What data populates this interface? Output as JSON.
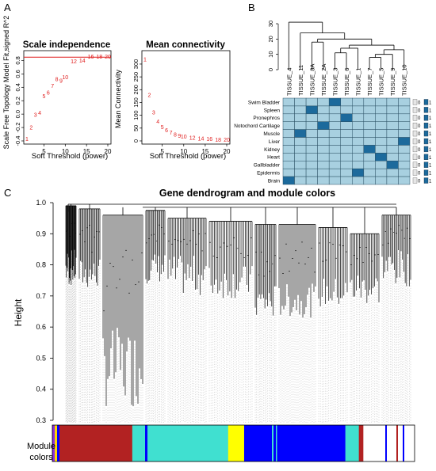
{
  "panel_labels": {
    "a": "A",
    "b": "B",
    "c": "C"
  },
  "chart_data": [
    {
      "type": "scatter",
      "title": "Scale independence",
      "xlabel": "Soft Threshold (power)",
      "ylabel": "Scale Free Topology Model Fit,signed R^2",
      "xlim": [
        1,
        20
      ],
      "ylim": [
        -0.4,
        0.9
      ],
      "xticks": [
        "5",
        "10",
        "15",
        "20"
      ],
      "yticks": [
        "-0.4",
        "-0.2",
        "0.0",
        "0.2",
        "0.4",
        "0.6",
        "0.8"
      ],
      "reference_line": 0.85,
      "reference_color": "#e02020",
      "point_color": "#e02020",
      "points": [
        {
          "label": "1",
          "x": 1,
          "y": -0.37
        },
        {
          "label": "2",
          "x": 2,
          "y": -0.2
        },
        {
          "label": "3",
          "x": 3,
          "y": -0.01
        },
        {
          "label": "4",
          "x": 4,
          "y": 0.02
        },
        {
          "label": "5",
          "x": 5,
          "y": 0.27
        },
        {
          "label": "6",
          "x": 6,
          "y": 0.32
        },
        {
          "label": "7",
          "x": 7,
          "y": 0.42
        },
        {
          "label": "8",
          "x": 8,
          "y": 0.52
        },
        {
          "label": "9",
          "x": 9,
          "y": 0.5
        },
        {
          "label": "10",
          "x": 10,
          "y": 0.55
        },
        {
          "label": "12",
          "x": 12,
          "y": 0.79
        },
        {
          "label": "14",
          "x": 14,
          "y": 0.8
        },
        {
          "label": "16",
          "x": 16,
          "y": 0.86
        },
        {
          "label": "18",
          "x": 18,
          "y": 0.86
        },
        {
          "label": "20",
          "x": 20,
          "y": 0.86
        }
      ]
    },
    {
      "type": "scatter",
      "title": "Mean connectivity",
      "xlabel": "Soft Threshold (power)",
      "ylabel": "Mean Connectivity",
      "xlim": [
        1,
        20
      ],
      "ylim": [
        0,
        340
      ],
      "xticks": [
        "5",
        "10",
        "15",
        "20"
      ],
      "yticks": [
        "0",
        "50",
        "100",
        "150",
        "200",
        "250",
        "300"
      ],
      "point_color": "#e02020",
      "points": [
        {
          "label": "1",
          "x": 1,
          "y": 318
        },
        {
          "label": "2",
          "x": 2,
          "y": 180
        },
        {
          "label": "3",
          "x": 3,
          "y": 112
        },
        {
          "label": "4",
          "x": 4,
          "y": 76
        },
        {
          "label": "5",
          "x": 5,
          "y": 54
        },
        {
          "label": "6",
          "x": 6,
          "y": 41
        },
        {
          "label": "7",
          "x": 7,
          "y": 32
        },
        {
          "label": "8",
          "x": 8,
          "y": 25
        },
        {
          "label": "9",
          "x": 9,
          "y": 20
        },
        {
          "label": "10",
          "x": 10,
          "y": 17
        },
        {
          "label": "12",
          "x": 12,
          "y": 12
        },
        {
          "label": "14",
          "x": 14,
          "y": 9
        },
        {
          "label": "16",
          "x": 16,
          "y": 7
        },
        {
          "label": "18",
          "x": 18,
          "y": 5
        },
        {
          "label": "20",
          "x": 20,
          "y": 4
        }
      ]
    },
    {
      "type": "heatmap",
      "dendrogram_ticks": [
        "0",
        "10",
        "20",
        "30"
      ],
      "columns": [
        "TISSUE_4",
        "TISSUE_11",
        "TISSUE_8A",
        "TISSUE_2A",
        "TISSUE_3",
        "TISSUE_6",
        "TISSUE_1",
        "TISSUE_7",
        "TISSUE_5",
        "TISSUE_9",
        "TISSUE_10"
      ],
      "rows": [
        "Swim Bladder",
        "Spleen",
        "Pronephros",
        "Notochord Cartilage",
        "Muscle",
        "Liver",
        "Kidney",
        "Heart",
        "Gallbladder",
        "Epidermis",
        "Brain"
      ],
      "highlight": [
        [
          0,
          4
        ],
        [
          1,
          2
        ],
        [
          2,
          5
        ],
        [
          3,
          3
        ],
        [
          4,
          1
        ],
        [
          5,
          10
        ],
        [
          6,
          7
        ],
        [
          7,
          8
        ],
        [
          8,
          9
        ],
        [
          9,
          6
        ],
        [
          10,
          0
        ]
      ],
      "colors": {
        "low": "#a8d0e0",
        "high": "#1c6a9c",
        "grid": "#2a4f63"
      },
      "legend_values": [
        "0",
        "1"
      ]
    },
    {
      "type": "dendrogram",
      "title": "Gene dendrogram and module colors",
      "ylabel": "Height",
      "ylim": [
        0.3,
        1.0
      ],
      "yticks": [
        "0.3",
        "0.4",
        "0.5",
        "0.6",
        "0.7",
        "0.8",
        "0.9",
        "1.0"
      ],
      "color_bar_label": "Module colors",
      "modules": [
        {
          "color": "#b22222",
          "share": 0.205
        },
        {
          "color": "#40e0d0",
          "share": 0.27
        },
        {
          "color": "#ffff00",
          "share": 0.045
        },
        {
          "color": "#0000ff",
          "share": 0.285
        },
        {
          "color": "#40e0d0",
          "share": 0.038
        },
        {
          "color": "#b22222",
          "share": 0.012
        }
      ],
      "colors": {
        "line": "#000000",
        "guide": "#9a9a9a"
      }
    }
  ]
}
